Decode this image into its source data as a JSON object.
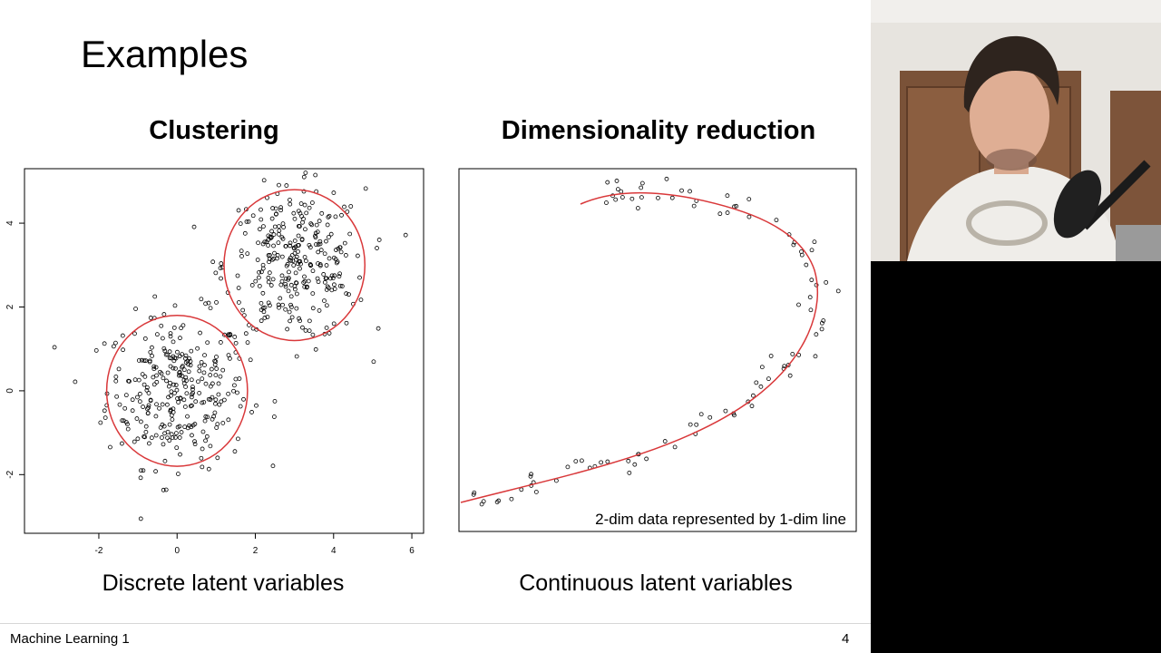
{
  "slide": {
    "title": "Examples",
    "left_panel_title": "Clustering",
    "right_panel_title": "Dimensionality reduction",
    "left_caption": "Discrete latent variables",
    "right_caption": "Continuous latent variables",
    "right_annotation": "2-dim data represented by 1-dim line",
    "footer_left": "Machine Learning 1",
    "page_number": "4"
  },
  "colors": {
    "curve": "#d9383a",
    "points": "#000000",
    "background": "#ffffff"
  },
  "chart_data": [
    {
      "type": "scatter",
      "title": "Clustering",
      "xlim": [
        -3.9,
        6.3
      ],
      "ylim": [
        -3.4,
        5.3
      ],
      "xticks": [
        -2,
        0,
        2,
        4,
        6
      ],
      "yticks": [
        -2,
        0,
        2,
        4
      ],
      "grid": false,
      "clusters": [
        {
          "center": [
            0,
            0
          ],
          "approx_points": 300
        },
        {
          "center": [
            3,
            3
          ],
          "approx_points": 300
        }
      ],
      "circles": [
        {
          "center": [
            0,
            0
          ],
          "radius": 1.8
        },
        {
          "center": [
            3,
            3
          ],
          "radius": 1.8
        }
      ]
    },
    {
      "type": "scatter",
      "title": "Dimensionality reduction",
      "annotation": "2-dim data represented by 1-dim line",
      "approx_points": 100,
      "has_axes_ticks": false,
      "curve": "single smooth 1-dim line through 2-dim data"
    }
  ]
}
